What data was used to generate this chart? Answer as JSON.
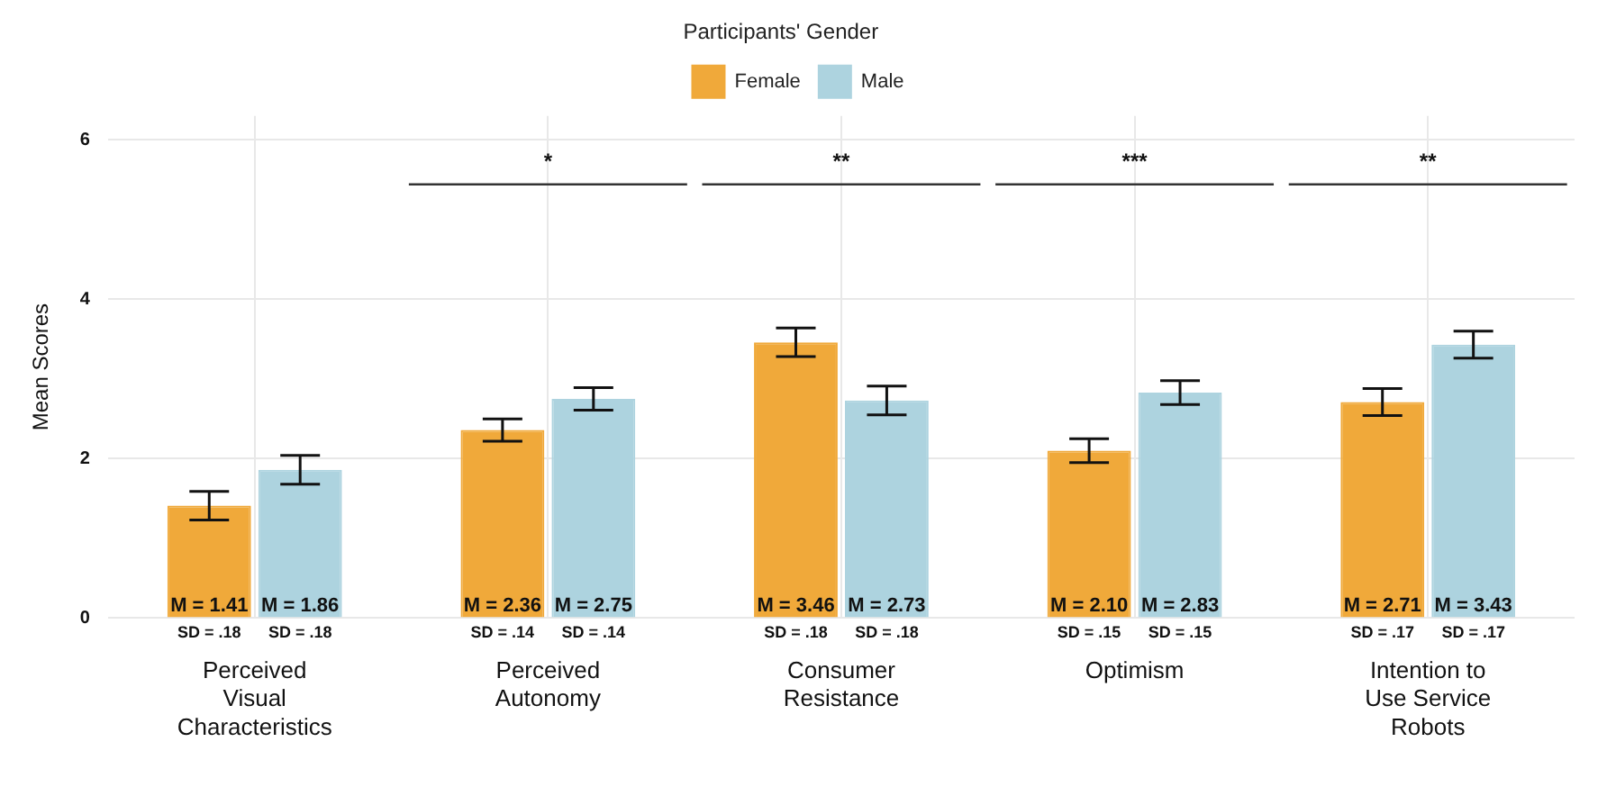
{
  "chart_data": {
    "type": "bar",
    "legend_title": "Participants' Gender",
    "ylabel": "Mean Scores",
    "categories": [
      "Perceived Visual Characteristics",
      "Perceived Autonomy",
      "Consumer Resistance",
      "Optimism",
      "Intention to Use Service Robots"
    ],
    "series": [
      {
        "name": "Female",
        "color": "#f0a93a",
        "values": [
          1.41,
          2.36,
          3.46,
          2.1,
          2.71
        ],
        "errors": [
          0.18,
          0.14,
          0.18,
          0.15,
          0.17
        ],
        "value_labels": [
          "M = 1.41",
          "M = 2.36",
          "M = 3.46",
          "M = 2.10",
          "M = 2.71"
        ]
      },
      {
        "name": "Male",
        "color": "#add3df",
        "values": [
          1.86,
          2.75,
          2.73,
          2.83,
          3.43
        ],
        "errors": [
          0.18,
          0.14,
          0.18,
          0.15,
          0.17
        ],
        "value_labels": [
          "M = 1.86",
          "M = 2.75",
          "M = 2.73",
          "M = 2.83",
          "M = 3.43"
        ]
      }
    ],
    "annotations": [
      "SD = .18",
      "SD = .18",
      "SD = .14",
      "SD = .14",
      "SD = .18",
      "SD = .18",
      "SD = .15",
      "SD = .15",
      "SD = .17",
      "SD = .17",
      "*",
      "**",
      "***",
      "**"
    ],
    "ylim": [
      0,
      6.3
    ],
    "yticks": [
      0,
      2,
      4,
      6
    ],
    "grid": true,
    "legend": "top"
  }
}
